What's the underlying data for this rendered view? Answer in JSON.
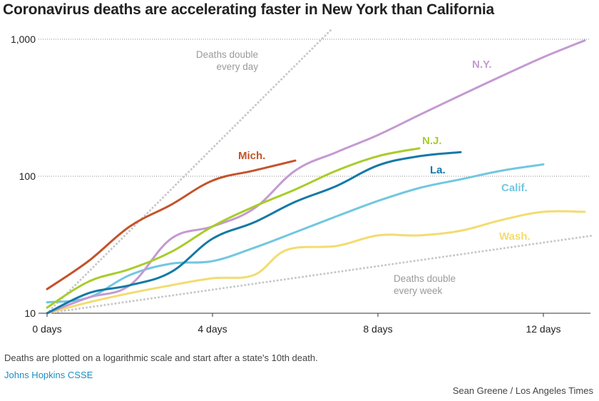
{
  "title": "Coronavirus deaths are accelerating faster in New York than California",
  "footnote": "Deaths are plotted on a logarithmic scale and start after a state's 10th death.",
  "source": "Johns Hopkins CSSE",
  "credit": "Sean Greene / Los Angeles Times",
  "chart_data": {
    "type": "line",
    "title": "Coronavirus deaths are accelerating faster in New York than California",
    "xlabel": "",
    "ylabel": "",
    "yscale": "log",
    "xlim": [
      0,
      13.2
    ],
    "ylim": [
      10,
      1000
    ],
    "x_ticks": [
      {
        "value": 0,
        "label": "0 days"
      },
      {
        "value": 4,
        "label": "4 days"
      },
      {
        "value": 8,
        "label": "8 days"
      },
      {
        "value": 12,
        "label": "12 days"
      }
    ],
    "y_ticks": [
      {
        "value": 10,
        "label": "10"
      },
      {
        "value": 100,
        "label": "100"
      },
      {
        "value": 1000,
        "label": "1,000"
      }
    ],
    "series": [
      {
        "name": "Mich.",
        "color": "#c4532a",
        "x": [
          0,
          1,
          2,
          3,
          4,
          5,
          6
        ],
        "y": [
          15,
          24,
          43,
          62,
          93,
          110,
          130
        ]
      },
      {
        "name": "N.Y.",
        "color": "#c49ad1",
        "x": [
          0,
          1,
          2,
          3,
          4,
          5,
          6,
          7,
          8,
          9,
          10,
          11,
          12,
          13
        ],
        "y": [
          10,
          13,
          16,
          35,
          43,
          58,
          110,
          150,
          200,
          280,
          390,
          540,
          740,
          980
        ]
      },
      {
        "name": "N.J.",
        "color": "#a8cc2a",
        "x": [
          0,
          1,
          2,
          3,
          4,
          5,
          6,
          7,
          8,
          9
        ],
        "y": [
          11,
          17,
          21,
          28,
          43,
          60,
          80,
          110,
          140,
          160
        ]
      },
      {
        "name": "La.",
        "color": "#1379a6",
        "x": [
          0,
          1,
          2,
          3,
          4,
          5,
          6,
          7,
          8,
          9,
          10
        ],
        "y": [
          10,
          14,
          16,
          20,
          35,
          46,
          65,
          85,
          120,
          140,
          150
        ]
      },
      {
        "name": "Calif.",
        "color": "#72c7e0",
        "x": [
          0,
          1,
          2,
          3,
          4,
          5,
          6,
          7,
          8,
          9,
          10,
          11,
          12
        ],
        "y": [
          12,
          13,
          19,
          23,
          24,
          30,
          39,
          51,
          66,
          82,
          95,
          110,
          122
        ]
      },
      {
        "name": "Wash.",
        "color": "#f2dc70",
        "x": [
          0,
          1,
          2,
          3,
          4,
          5,
          5.8,
          7,
          8,
          9,
          10,
          11,
          12,
          13
        ],
        "y": [
          10,
          12,
          14,
          16,
          18,
          19,
          29,
          31,
          37,
          37,
          40,
          48,
          55,
          55
        ]
      }
    ],
    "reference_lines": [
      {
        "name": "Deaths double every day",
        "color": "#c8c8c8",
        "x": [
          0,
          6.9
        ],
        "y": [
          10,
          1200
        ]
      },
      {
        "name": "Deaths double every week",
        "color": "#c8c8c8",
        "x": [
          0,
          13.2
        ],
        "y": [
          10,
          36.9
        ]
      }
    ],
    "annotations": [
      {
        "id": "double-day",
        "lines": [
          "Deaths double",
          "every day"
        ]
      },
      {
        "id": "double-week",
        "lines": [
          "Deaths double",
          "every week"
        ]
      }
    ]
  }
}
